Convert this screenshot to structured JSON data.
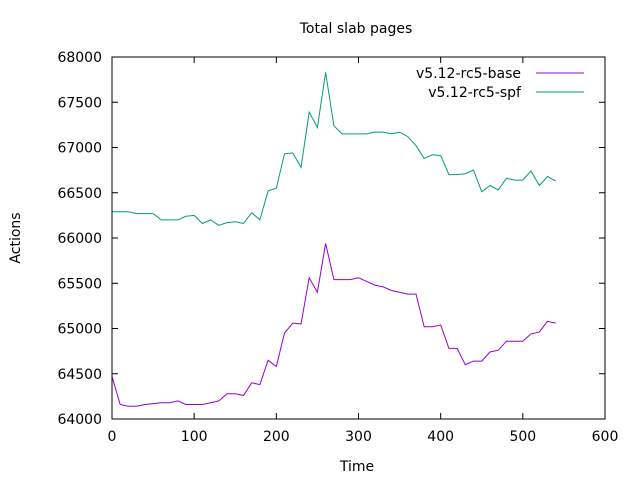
{
  "chart_data": {
    "type": "line",
    "title": "Total slab pages",
    "xlabel": "Time",
    "ylabel": "Actions",
    "xlim": [
      0,
      600
    ],
    "ylim": [
      64000,
      68000
    ],
    "x_ticks": [
      "0",
      "100",
      "200",
      "300",
      "400",
      "500",
      "600"
    ],
    "y_ticks": [
      "64000",
      "64500",
      "65000",
      "65500",
      "66000",
      "66500",
      "67000",
      "67500",
      "68000"
    ],
    "grid": false,
    "legend_position": "top-right",
    "series": [
      {
        "name": "v5.12-rc5-base",
        "color": "#9400d3",
        "x": [
          0,
          10,
          20,
          30,
          40,
          50,
          60,
          70,
          80,
          90,
          100,
          110,
          120,
          130,
          140,
          150,
          160,
          170,
          180,
          190,
          200,
          210,
          220,
          230,
          240,
          250,
          260,
          270,
          280,
          290,
          300,
          310,
          320,
          330,
          340,
          350,
          360,
          370,
          380,
          390,
          400,
          410,
          420,
          430,
          440,
          450,
          460,
          470,
          480,
          490,
          500,
          510,
          520,
          530,
          540
        ],
        "values": [
          64470,
          64160,
          64140,
          64140,
          64160,
          64170,
          64180,
          64180,
          64200,
          64160,
          64160,
          64160,
          64180,
          64200,
          64280,
          64280,
          64260,
          64400,
          64380,
          64650,
          64580,
          64950,
          65060,
          65050,
          65560,
          65400,
          65940,
          65540,
          65540,
          65540,
          65560,
          65520,
          65480,
          65460,
          65420,
          65400,
          65380,
          65380,
          65020,
          65020,
          65040,
          64780,
          64780,
          64600,
          64640,
          64640,
          64740,
          64760,
          64860,
          64860,
          64860,
          64940,
          64960,
          65080,
          65060
        ]
      },
      {
        "name": "v5.12-rc5-spf",
        "color": "#009e73",
        "x": [
          0,
          10,
          20,
          30,
          40,
          50,
          60,
          70,
          80,
          90,
          100,
          110,
          120,
          130,
          140,
          150,
          160,
          170,
          180,
          190,
          200,
          210,
          220,
          230,
          240,
          250,
          260,
          270,
          280,
          290,
          300,
          310,
          320,
          330,
          340,
          350,
          360,
          370,
          380,
          390,
          400,
          410,
          420,
          430,
          440,
          450,
          460,
          470,
          480,
          490,
          500,
          510,
          520,
          530,
          540
        ],
        "values": [
          66290,
          66290,
          66290,
          66270,
          66270,
          66270,
          66200,
          66200,
          66200,
          66240,
          66250,
          66160,
          66200,
          66140,
          66170,
          66180,
          66160,
          66280,
          66200,
          66520,
          66550,
          66930,
          66940,
          66780,
          67390,
          67220,
          67830,
          67240,
          67150,
          67150,
          67150,
          67150,
          67170,
          67170,
          67150,
          67170,
          67120,
          67020,
          66880,
          66920,
          66910,
          66700,
          66700,
          66710,
          66750,
          66510,
          66580,
          66530,
          66660,
          66640,
          66640,
          66740,
          66580,
          66680,
          66630
        ]
      }
    ]
  }
}
